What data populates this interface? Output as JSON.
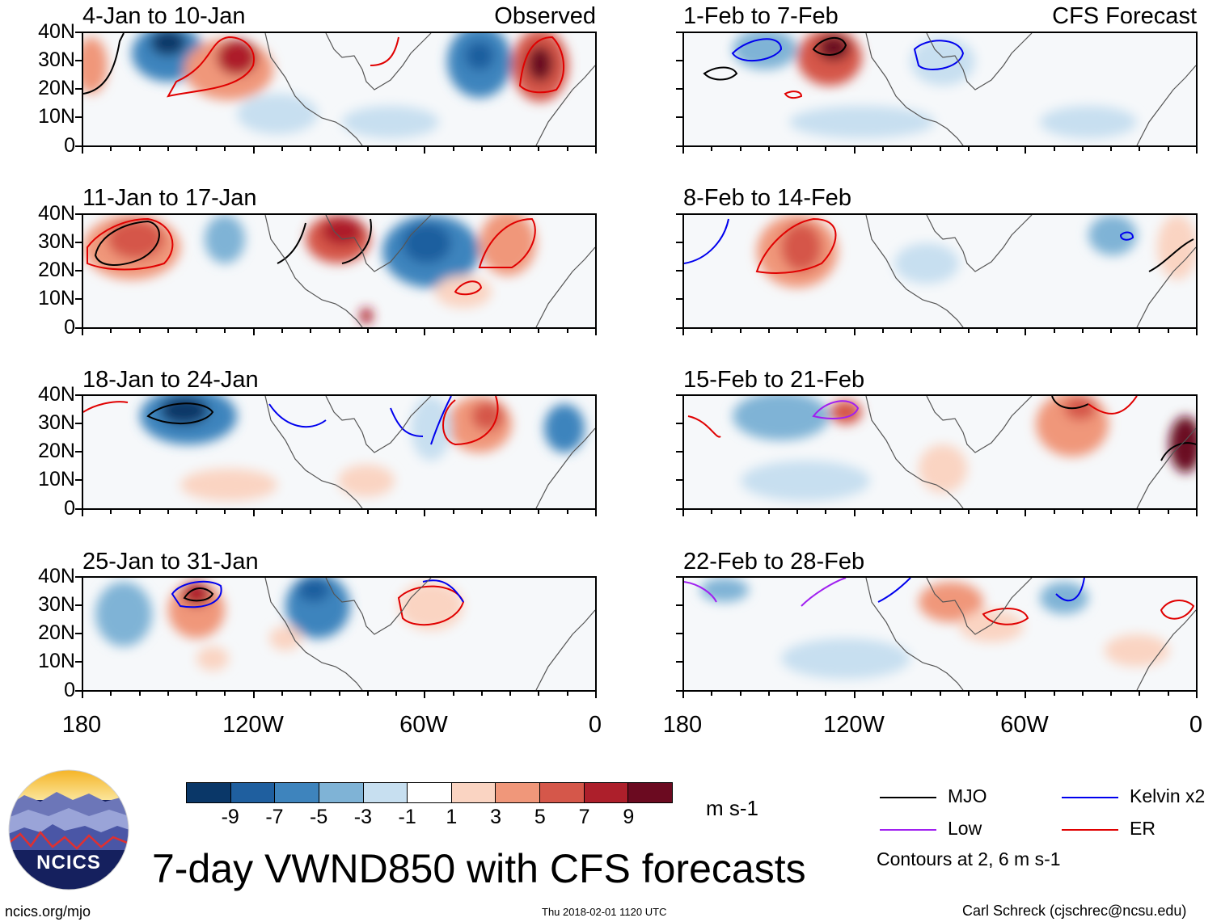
{
  "panels": {
    "left": [
      {
        "title": "4-Jan to 10-Jan",
        "right_title": "Observed"
      },
      {
        "title": "11-Jan to 17-Jan",
        "right_title": ""
      },
      {
        "title": "18-Jan to 24-Jan",
        "right_title": ""
      },
      {
        "title": "25-Jan to 31-Jan",
        "right_title": ""
      }
    ],
    "right": [
      {
        "title": "1-Feb to 7-Feb",
        "right_title": "CFS Forecast"
      },
      {
        "title": "8-Feb to 14-Feb",
        "right_title": ""
      },
      {
        "title": "15-Feb to 21-Feb",
        "right_title": ""
      },
      {
        "title": "22-Feb to 28-Feb",
        "right_title": ""
      }
    ]
  },
  "axes": {
    "lat_labels": [
      "40N",
      "30N",
      "20N",
      "10N",
      "0"
    ],
    "lon_labels": [
      "180",
      "120W",
      "60W",
      "0"
    ]
  },
  "colorbar": {
    "labels": [
      "-9",
      "-7",
      "-5",
      "-3",
      "-1",
      "1",
      "3",
      "5",
      "7",
      "9"
    ],
    "colors": [
      "#0a3768",
      "#1f5f9f",
      "#3e84bd",
      "#7fb3d6",
      "#c7dff0",
      "#ffffff",
      "#fad4c2",
      "#f0977a",
      "#d5574a",
      "#ad1f2b",
      "#6b0a20"
    ],
    "units": "m s-1"
  },
  "legend": {
    "items": [
      {
        "label": "MJO",
        "color": "#000000"
      },
      {
        "label": "Kelvin x2",
        "color": "#0000ee"
      },
      {
        "label": "Low",
        "color": "#a020f0"
      },
      {
        "label": "ER",
        "color": "#e00000"
      }
    ],
    "note": "Contours at 2, 6 m s-1"
  },
  "footer": {
    "main_title": "7-day VWND850 with CFS forecasts",
    "logo_text": "NCICS",
    "site": "ncics.org/mjo",
    "timestamp": "Thu 2018-02-01 1120 UTC",
    "credit": "Carl Schreck (cjschrec@ncsu.edu)"
  }
}
